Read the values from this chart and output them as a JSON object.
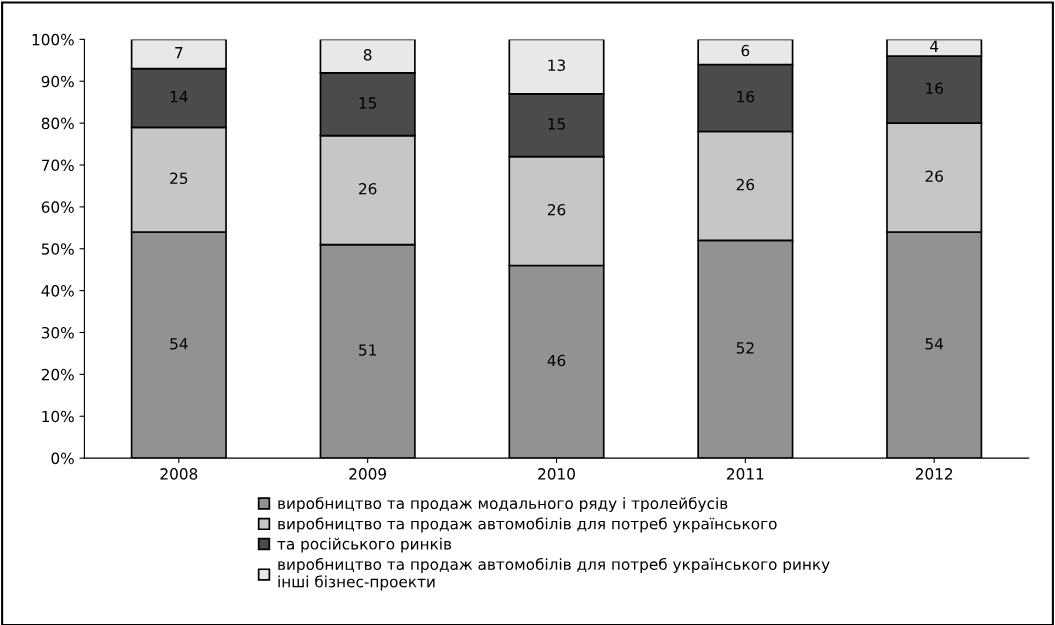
{
  "chart_data": {
    "type": "bar",
    "stacked": true,
    "categories": [
      "2008",
      "2009",
      "2010",
      "2011",
      "2012"
    ],
    "series": [
      {
        "name": "виробництво та продаж модального ряду і тролейбусів",
        "color": "#929292",
        "values": [
          54,
          51,
          46,
          52,
          54
        ]
      },
      {
        "name": "виробництво та продаж автомобілів для потреб українського",
        "color": "#c6c6c6",
        "values": [
          25,
          26,
          26,
          26,
          26
        ]
      },
      {
        "name": "та російського ринків",
        "color": "#4b4b4b",
        "values": [
          14,
          15,
          15,
          16,
          16
        ]
      },
      {
        "name": "виробництво та продаж автомобілів для потреб українського ринку\nінші бізнес-проекти",
        "color": "#e8e8e8",
        "values": [
          7,
          8,
          13,
          6,
          4
        ]
      }
    ],
    "ylim": [
      0,
      100
    ],
    "yticks": [
      {
        "value": 0,
        "label": "0%"
      },
      {
        "value": 10,
        "label": "10%"
      },
      {
        "value": 20,
        "label": "20%"
      },
      {
        "value": 30,
        "label": "30%"
      },
      {
        "value": 40,
        "label": "40%"
      },
      {
        "value": 50,
        "label": "50%"
      },
      {
        "value": 60,
        "label": "60%"
      },
      {
        "value": 70,
        "label": "70%"
      },
      {
        "value": 80,
        "label": "80%"
      },
      {
        "value": 90,
        "label": "90%"
      },
      {
        "value": 100,
        "label": "100%"
      }
    ],
    "data_labels": true,
    "grid": false,
    "legend": "bottom"
  }
}
